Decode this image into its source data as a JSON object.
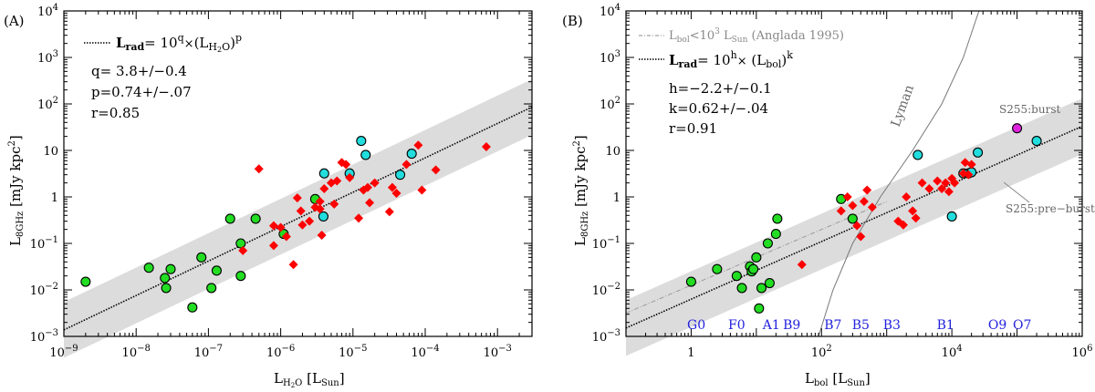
{
  "panels": [
    {
      "id": "A",
      "panel_label": "(A)",
      "fit": {
        "label_prefix": "L",
        "label_sub": "rad",
        "label_eq": "= 10",
        "label_exp": "q",
        "label_times": "×",
        "label_arg": "(L",
        "label_arg_sub": "H",
        "label_arg_sub2": "2",
        "label_arg_sub3": "O",
        "label_close": ")",
        "label_pow": "p",
        "stats": [
          "q= 3.8+/−0.4",
          "p=0.74+/−.07",
          "r=0.85"
        ]
      }
    },
    {
      "id": "B",
      "panel_label": "(B)",
      "fit": {
        "anglada_label": "L",
        "anglada_sub": "bol",
        "anglada_rest": "<10",
        "anglada_exp": "3",
        "anglada_lsun": " L",
        "anglada_lsun_sub": "Sun",
        "anglada_ref": " (Anglada 1995)",
        "label_prefix": "L",
        "label_sub": "rad",
        "label_eq": "= 10",
        "label_exp": "h",
        "label_times": "×",
        "label_arg": " (L",
        "label_arg_sub": "bol",
        "label_close": ")",
        "label_pow": "k",
        "stats": [
          "h=−2.2+/−0.1",
          "k=0.62+/−.04",
          "r=0.91"
        ]
      },
      "lyman_label": "Lyman",
      "annotations": {
        "burst": "S255:burst",
        "preburst": "S255:pre−burst"
      },
      "spectral_types": [
        {
          "label": "G0",
          "x": 1.2
        },
        {
          "label": "F0",
          "x": 5
        },
        {
          "label": "A1",
          "x": 17
        },
        {
          "label": "B9",
          "x": 35
        },
        {
          "label": "B7",
          "x": 150
        },
        {
          "label": "B5",
          "x": 400
        },
        {
          "label": "B3",
          "x": 1200
        },
        {
          "label": "B1",
          "x": 8000
        },
        {
          "label": "O9",
          "x": 50000
        },
        {
          "label": "O7",
          "x": 120000
        }
      ]
    }
  ],
  "colors": {
    "red": "#ff0000",
    "green": "#22dd22",
    "cyan": "#22dddd",
    "magenta": "#dd22dd",
    "band": "#dcdcdc",
    "spectral": "#2222dd",
    "grey": "#888888"
  },
  "chart_data": [
    {
      "type": "scatter",
      "title": "(A)",
      "xlabel": "L_H2O [L_Sun]",
      "ylabel": "L_8GHz [mJy kpc^2]",
      "xscale": "log",
      "yscale": "log",
      "xlim": [
        1e-09,
        0.003
      ],
      "ylim": [
        0.001,
        10000
      ],
      "fit_line": {
        "q": 3.8,
        "p": 0.74
      },
      "band_width_dex": 0.6,
      "series": [
        {
          "values": [
            [
              1.5e-08,
              0.03
            ],
            [
              3e-08,
              0.028
            ],
            [
              2.5e-08,
              0.018
            ],
            [
              2.6e-08,
              0.011
            ],
            [
              6e-08,
              0.0042
            ],
            [
              8e-08,
              0.05
            ],
            [
              1.1e-07,
              0.011
            ],
            [
              1.3e-07,
              0.026
            ],
            [
              2e-07,
              0.34
            ],
            [
              2.8e-07,
              0.1
            ],
            [
              2.8e-07,
              0.02
            ],
            [
              4.5e-07,
              0.34
            ],
            [
              1.1e-06,
              0.16
            ],
            [
              3e-06,
              0.9
            ],
            [
              2e-09,
              0.015
            ]
          ],
          "color": "green"
        },
        {
          "values": [
            [
              4e-06,
              3.2
            ],
            [
              3.9e-06,
              0.38
            ],
            [
              9e-06,
              3.2
            ],
            [
              1.3e-05,
              16
            ],
            [
              1.5e-05,
              8
            ],
            [
              4.5e-05,
              3
            ],
            [
              6.5e-05,
              8.5
            ]
          ],
          "color": "cyan"
        },
        {
          "values": [
            [
              5e-07,
              4
            ],
            [
              3e-07,
              0.07
            ],
            [
              8e-07,
              0.09
            ],
            [
              8e-07,
              0.24
            ],
            [
              1e-06,
              0.22
            ],
            [
              1.2e-06,
              0.14
            ],
            [
              1.5e-06,
              0.035
            ],
            [
              1.7e-06,
              0.95
            ],
            [
              1.9e-06,
              0.5
            ],
            [
              2e-06,
              0.25
            ],
            [
              2.5e-06,
              0.3
            ],
            [
              3e-06,
              0.6
            ],
            [
              3.5e-06,
              0.8
            ],
            [
              3.7e-06,
              0.15
            ],
            [
              4e-06,
              1.5
            ],
            [
              5e-06,
              2
            ],
            [
              5.5e-06,
              0.7
            ],
            [
              6e-06,
              2.2
            ],
            [
              7e-06,
              5.5
            ],
            [
              8e-06,
              5
            ],
            [
              9e-06,
              2.6
            ],
            [
              1.2e-05,
              0.35
            ],
            [
              1.4e-05,
              1.4
            ],
            [
              1.6e-05,
              1.6
            ],
            [
              1.7e-05,
              0.75
            ],
            [
              2e-05,
              2
            ],
            [
              3.2e-05,
              0.48
            ],
            [
              3.5e-05,
              1.6
            ],
            [
              4e-05,
              1.2
            ],
            [
              5.5e-05,
              5
            ],
            [
              8e-05,
              13
            ],
            [
              9e-05,
              1.4
            ],
            [
              0.00014,
              3.8
            ],
            [
              0.0007,
              12
            ],
            [
              3.5e-06,
              0.55
            ]
          ],
          "color": "red"
        }
      ]
    },
    {
      "type": "scatter",
      "title": "(B)",
      "xlabel": "L_bol [L_Sun]",
      "ylabel": "L_8GHz [mJy kpc^2]",
      "xscale": "log",
      "yscale": "log",
      "xlim": [
        0.1,
        1000000
      ],
      "ylim": [
        0.001,
        10000
      ],
      "fit_line": {
        "h": -2.2,
        "k": 0.62
      },
      "band_width_dex": 0.6,
      "series": [
        {
          "values": [
            [
              1,
              0.015
            ],
            [
              2.5,
              0.028
            ],
            [
              5,
              0.02
            ],
            [
              6,
              0.011
            ],
            [
              8,
              0.032
            ],
            [
              8.5,
              0.025
            ],
            [
              9,
              0.028
            ],
            [
              10,
              0.05
            ],
            [
              11,
              0.004
            ],
            [
              12,
              0.011
            ],
            [
              15,
              0.1
            ],
            [
              16,
              0.014
            ],
            [
              20,
              0.16
            ],
            [
              21,
              0.34
            ],
            [
              200,
              0.9
            ],
            [
              300,
              0.34
            ]
          ],
          "color": "green"
        },
        {
          "values": [
            [
              3000,
              8
            ],
            [
              10000,
              0.38
            ],
            [
              15000,
              3.2
            ],
            [
              18000,
              3.2
            ],
            [
              20000,
              3.4
            ],
            [
              25000,
              9
            ],
            [
              200000,
              16
            ]
          ],
          "color": "cyan"
        },
        {
          "values": [
            [
              50,
              0.035
            ],
            [
              200,
              0.5
            ],
            [
              250,
              1
            ],
            [
              300,
              0.65
            ],
            [
              350,
              0.24
            ],
            [
              400,
              0.14
            ],
            [
              450,
              0.8
            ],
            [
              500,
              1.4
            ],
            [
              600,
              0.6
            ],
            [
              1500,
              0.3
            ],
            [
              1800,
              0.25
            ],
            [
              2000,
              1
            ],
            [
              2500,
              0.5
            ],
            [
              2800,
              0.35
            ],
            [
              3500,
              2
            ],
            [
              4500,
              1.5
            ],
            [
              6000,
              2.2
            ],
            [
              7000,
              1.5
            ],
            [
              8000,
              2
            ],
            [
              9000,
              1.3
            ],
            [
              10000,
              2.5
            ],
            [
              11000,
              2
            ],
            [
              15000,
              3.2
            ],
            [
              16000,
              5.5
            ],
            [
              18000,
              3
            ],
            [
              20000,
              5
            ]
          ],
          "color": "red"
        },
        {
          "values": [
            [
              100000,
              30
            ]
          ],
          "color": "magenta"
        }
      ]
    }
  ]
}
